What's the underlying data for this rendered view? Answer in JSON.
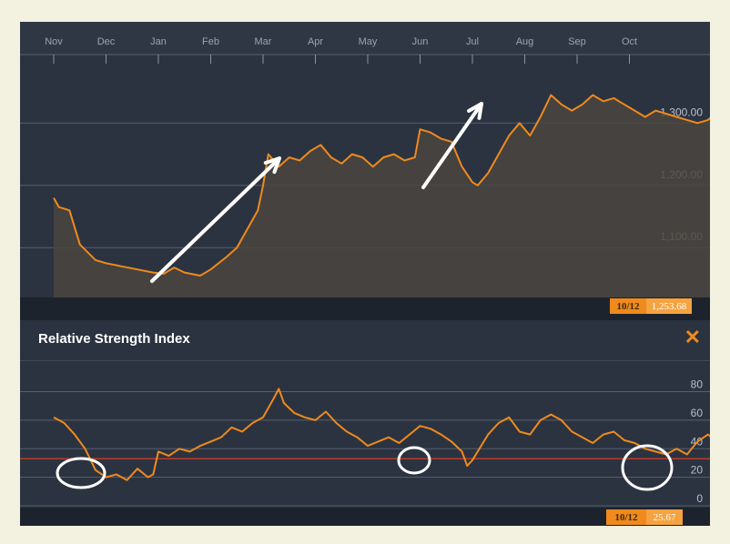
{
  "rsi_panel": {
    "title": "Relative Strength Index",
    "close_symbol": "✕"
  },
  "colors": {
    "line": "#f08a1c",
    "background": "#2b3340",
    "area": "#4a4540",
    "overbought_line": "#c0392b",
    "annotation": "#ffffff"
  },
  "chart_data": [
    {
      "type": "area",
      "x_months": [
        "Nov",
        "Dec",
        "Jan",
        "Feb",
        "Mar",
        "Apr",
        "May",
        "Jun",
        "Jul",
        "Aug",
        "Sep",
        "Oct"
      ],
      "y_ticks": [
        "1,100.00",
        "1,200.00",
        "1,300.00"
      ],
      "ylim": [
        1020,
        1410
      ],
      "grid": true,
      "cursor": {
        "date": "10/12",
        "value": "1,253.68"
      },
      "series": [
        {
          "points": [
            [
              0,
              1180
            ],
            [
              0.1,
              1165
            ],
            [
              0.3,
              1160
            ],
            [
              0.5,
              1105
            ],
            [
              0.8,
              1080
            ],
            [
              1.0,
              1075
            ],
            [
              1.3,
              1070
            ],
            [
              1.6,
              1065
            ],
            [
              1.9,
              1060
            ],
            [
              2.1,
              1058
            ],
            [
              2.3,
              1068
            ],
            [
              2.5,
              1060
            ],
            [
              2.8,
              1055
            ],
            [
              3.0,
              1065
            ],
            [
              3.3,
              1085
            ],
            [
              3.5,
              1100
            ],
            [
              3.7,
              1130
            ],
            [
              3.9,
              1160
            ],
            [
              4.0,
              1200
            ],
            [
              4.1,
              1250
            ],
            [
              4.3,
              1230
            ],
            [
              4.5,
              1245
            ],
            [
              4.7,
              1240
            ],
            [
              4.9,
              1255
            ],
            [
              5.1,
              1265
            ],
            [
              5.3,
              1245
            ],
            [
              5.5,
              1235
            ],
            [
              5.7,
              1250
            ],
            [
              5.9,
              1245
            ],
            [
              6.1,
              1230
            ],
            [
              6.3,
              1245
            ],
            [
              6.5,
              1250
            ],
            [
              6.7,
              1240
            ],
            [
              6.9,
              1245
            ],
            [
              7.0,
              1290
            ],
            [
              7.2,
              1285
            ],
            [
              7.4,
              1275
            ],
            [
              7.6,
              1270
            ],
            [
              7.8,
              1230
            ],
            [
              8.0,
              1205
            ],
            [
              8.1,
              1200
            ],
            [
              8.3,
              1220
            ],
            [
              8.5,
              1250
            ],
            [
              8.7,
              1280
            ],
            [
              8.9,
              1300
            ],
            [
              9.1,
              1280
            ],
            [
              9.3,
              1310
            ],
            [
              9.5,
              1345
            ],
            [
              9.7,
              1330
            ],
            [
              9.9,
              1320
            ],
            [
              10.1,
              1330
            ],
            [
              10.3,
              1345
            ],
            [
              10.5,
              1335
            ],
            [
              10.7,
              1340
            ],
            [
              10.9,
              1330
            ],
            [
              11.1,
              1320
            ],
            [
              11.3,
              1310
            ],
            [
              11.5,
              1320
            ],
            [
              11.7,
              1315
            ],
            [
              11.9,
              1310
            ],
            [
              12.1,
              1305
            ],
            [
              12.3,
              1300
            ],
            [
              12.5,
              1305
            ],
            [
              12.7,
              1320
            ],
            [
              12.9,
              1310
            ],
            [
              13.1,
              1290
            ],
            [
              13.3,
              1270
            ],
            [
              13.5,
              1250
            ],
            [
              13.6,
              1245
            ],
            [
              13.7,
              1253
            ]
          ],
          "end_marker": 1245
        }
      ]
    },
    {
      "type": "line",
      "title": "Relative Strength Index",
      "y_ticks": [
        "0",
        "20",
        "40",
        "60",
        "80"
      ],
      "ylim": [
        0,
        88
      ],
      "reference_line": 33,
      "cursor": {
        "date": "10/12",
        "value": "25.67"
      },
      "series": [
        {
          "points": [
            [
              0,
              62
            ],
            [
              0.2,
              58
            ],
            [
              0.4,
              50
            ],
            [
              0.6,
              40
            ],
            [
              0.8,
              25
            ],
            [
              1.0,
              20
            ],
            [
              1.2,
              22
            ],
            [
              1.4,
              18
            ],
            [
              1.6,
              26
            ],
            [
              1.8,
              20
            ],
            [
              1.9,
              22
            ],
            [
              2.0,
              38
            ],
            [
              2.2,
              35
            ],
            [
              2.4,
              40
            ],
            [
              2.6,
              38
            ],
            [
              2.8,
              42
            ],
            [
              3.0,
              45
            ],
            [
              3.2,
              48
            ],
            [
              3.4,
              55
            ],
            [
              3.6,
              52
            ],
            [
              3.8,
              58
            ],
            [
              4.0,
              62
            ],
            [
              4.2,
              75
            ],
            [
              4.3,
              82
            ],
            [
              4.4,
              72
            ],
            [
              4.6,
              65
            ],
            [
              4.8,
              62
            ],
            [
              5.0,
              60
            ],
            [
              5.2,
              66
            ],
            [
              5.4,
              58
            ],
            [
              5.6,
              52
            ],
            [
              5.8,
              48
            ],
            [
              6.0,
              42
            ],
            [
              6.2,
              45
            ],
            [
              6.4,
              48
            ],
            [
              6.6,
              44
            ],
            [
              6.8,
              50
            ],
            [
              7.0,
              56
            ],
            [
              7.2,
              54
            ],
            [
              7.4,
              50
            ],
            [
              7.6,
              45
            ],
            [
              7.8,
              38
            ],
            [
              7.9,
              28
            ],
            [
              8.0,
              32
            ],
            [
              8.1,
              38
            ],
            [
              8.3,
              50
            ],
            [
              8.5,
              58
            ],
            [
              8.7,
              62
            ],
            [
              8.9,
              52
            ],
            [
              9.1,
              50
            ],
            [
              9.3,
              60
            ],
            [
              9.5,
              64
            ],
            [
              9.7,
              60
            ],
            [
              9.9,
              52
            ],
            [
              10.1,
              48
            ],
            [
              10.3,
              44
            ],
            [
              10.5,
              50
            ],
            [
              10.7,
              52
            ],
            [
              10.9,
              46
            ],
            [
              11.1,
              44
            ],
            [
              11.3,
              40
            ],
            [
              11.5,
              38
            ],
            [
              11.7,
              36
            ],
            [
              11.9,
              40
            ],
            [
              12.1,
              36
            ],
            [
              12.3,
              45
            ],
            [
              12.5,
              50
            ],
            [
              12.7,
              44
            ],
            [
              12.9,
              38
            ],
            [
              13.1,
              28
            ],
            [
              13.3,
              20
            ],
            [
              13.5,
              22
            ],
            [
              13.7,
              25.67
            ]
          ]
        }
      ]
    }
  ]
}
